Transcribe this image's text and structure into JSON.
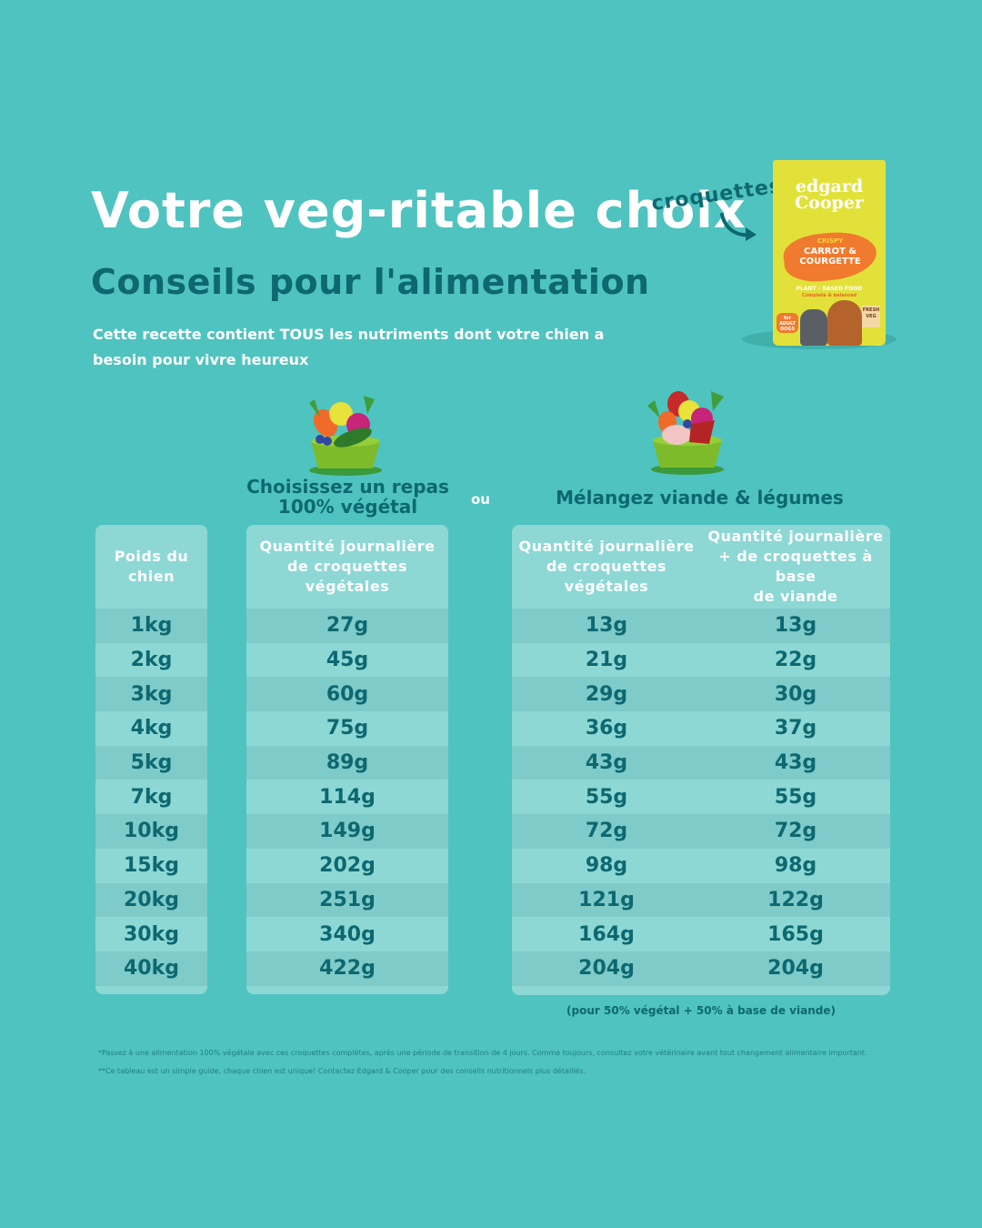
{
  "header": {
    "title": "Votre veg-ritable choix",
    "subtitle": "Conseils pour l'alimentation",
    "intro": "Cette recette contient TOUS les nutriments dont votre chien a besoin pour vivre heureux"
  },
  "product": {
    "callout": "croquettes",
    "brand_line1": "edgard",
    "brand_line2": "Cooper",
    "flavor_top": "CRISPY",
    "flavor_main": "CARROT & COURGETTE",
    "plant_label": "PLANT - BASED FOOD",
    "plant_sub": "Complete & balanced",
    "badge": "for ADULT DOGS",
    "sign": "FRESH VEG"
  },
  "options": {
    "option1": "Choisissez un repas 100% végétal",
    "separator": "ou",
    "option2": "Mélangez viande & légumes"
  },
  "colors": {
    "background": "#4fc3bf",
    "panel": "#8dd8d5",
    "panel_alt_row": "#7ecbc9",
    "dark_teal_text": "#0d6870",
    "white_text": "#ffffff",
    "bag_yellow": "#e2e13a",
    "bowl_green": "#7dbb2a"
  },
  "table": {
    "headers": {
      "weight": "Poids du\nchien",
      "veg_only": "Quantité journalière\nde croquettes\nvégétales",
      "mix_veg": "Quantité journalière\nde croquettes\nvégétales",
      "mix_meat": "Quantité journalière\n+ de croquettes à base\nde viande"
    },
    "rows": [
      {
        "weight": "1kg",
        "veg_only": "27g",
        "mix_veg": "13g",
        "mix_meat": "13g"
      },
      {
        "weight": "2kg",
        "veg_only": "45g",
        "mix_veg": "21g",
        "mix_meat": "22g"
      },
      {
        "weight": "3kg",
        "veg_only": "60g",
        "mix_veg": "29g",
        "mix_meat": "30g"
      },
      {
        "weight": "4kg",
        "veg_only": "75g",
        "mix_veg": "36g",
        "mix_meat": "37g"
      },
      {
        "weight": "5kg",
        "veg_only": "89g",
        "mix_veg": "43g",
        "mix_meat": "43g"
      },
      {
        "weight": "7kg",
        "veg_only": "114g",
        "mix_veg": "55g",
        "mix_meat": "55g"
      },
      {
        "weight": "10kg",
        "veg_only": "149g",
        "mix_veg": "72g",
        "mix_meat": "72g"
      },
      {
        "weight": "15kg",
        "veg_only": "202g",
        "mix_veg": "98g",
        "mix_meat": "98g"
      },
      {
        "weight": "20kg",
        "veg_only": "251g",
        "mix_veg": "121g",
        "mix_meat": "122g"
      },
      {
        "weight": "30kg",
        "veg_only": "340g",
        "mix_veg": "164g",
        "mix_meat": "165g"
      },
      {
        "weight": "40kg",
        "veg_only": "422g",
        "mix_veg": "204g",
        "mix_meat": "204g"
      }
    ],
    "mix_note": "(pour 50% végétal + 50% à base de viande)"
  },
  "footnotes": {
    "note1": "*Passez à une alimentation 100% végétale avec ces croquettes complètes, après une période de transition de 4 jours. Comme toujours, consultez votre vétérinaire avant tout changement alimentaire important.",
    "note2": "**Ce tableau est un simple guide, chaque chien est unique! Contactez Edgard & Cooper pour des conseils nutritionnels plus détaillés."
  }
}
